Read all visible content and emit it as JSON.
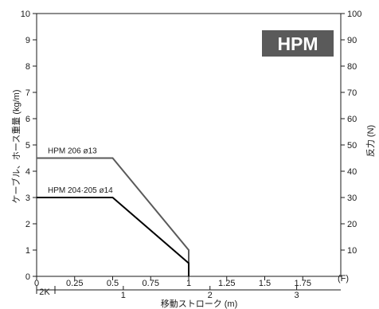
{
  "chart_data": {
    "type": "line",
    "badge": "HPM",
    "ylabel": "ケーブル、ホース重量 (kg/m)",
    "y2label": "反力 (N)",
    "xlabel": "移動ストローク (m)",
    "x_unit_marker": "(F)",
    "xlim": [
      0,
      2
    ],
    "ylim": [
      0,
      10
    ],
    "y2lim": [
      0,
      100
    ],
    "x_ticks": [
      "0",
      "0.25",
      "0.5",
      "0.75",
      "1",
      "1.25",
      "1.5",
      "1.75"
    ],
    "y_ticks": [
      "0",
      "1",
      "2",
      "3",
      "4",
      "5",
      "6",
      "7",
      "8",
      "9",
      "10"
    ],
    "y2_ticks": [
      "10",
      "20",
      "30",
      "40",
      "50",
      "60",
      "70",
      "80",
      "90",
      "100"
    ],
    "secondary_x": {
      "label": "2K",
      "ticks": [
        "1",
        "2",
        "3"
      ],
      "tick_positions_F": [
        0.57,
        1.14,
        1.71
      ]
    },
    "grid": false,
    "series": [
      {
        "name": "HPM 206 ø13",
        "color": "#5a5a5a",
        "points": [
          [
            0,
            4.5
          ],
          [
            0.5,
            4.5
          ],
          [
            1.0,
            1.0
          ],
          [
            1.0,
            0
          ]
        ]
      },
      {
        "name": "HPM 204·205 ø14",
        "color": "#000000",
        "points": [
          [
            0,
            3.0
          ],
          [
            0.5,
            3.0
          ],
          [
            1.0,
            0.5
          ],
          [
            1.0,
            0
          ]
        ]
      }
    ]
  }
}
